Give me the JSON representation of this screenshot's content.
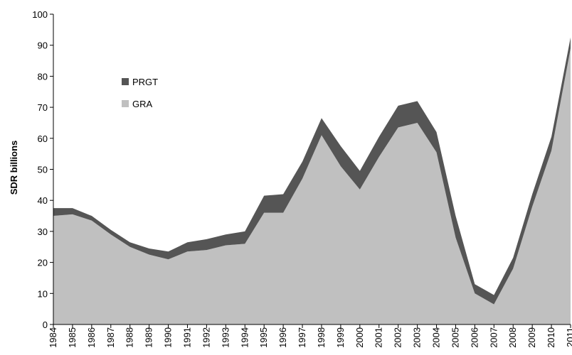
{
  "chart_data": {
    "type": "area",
    "stacked": true,
    "title": "",
    "xlabel": "",
    "ylabel": "SDR billions",
    "ylim": [
      0,
      100
    ],
    "yticks": [
      0,
      10,
      20,
      30,
      40,
      50,
      60,
      70,
      80,
      90,
      100
    ],
    "grid": false,
    "legend_position": "top-left",
    "x": [
      "1984",
      "1985",
      "1986",
      "1987",
      "1988",
      "1989",
      "1990",
      "1991",
      "1992",
      "1993",
      "1994",
      "1995",
      "1996",
      "1997",
      "1998",
      "1999",
      "2000",
      "2001",
      "2002",
      "2003",
      "2004",
      "2005",
      "2006",
      "2007",
      "2008",
      "2009",
      "2010",
      "2011"
    ],
    "series": [
      {
        "name": "GRA",
        "color": "#c0c0c0",
        "values": [
          35,
          35.5,
          33.5,
          29,
          25,
          22.5,
          21,
          23.5,
          24,
          25.5,
          26,
          36,
          36,
          47,
          61,
          51,
          43.5,
          54,
          63.5,
          65,
          55.5,
          28,
          10,
          6.5,
          18,
          38,
          56,
          89
        ]
      },
      {
        "name": "PRGT",
        "color": "#555555",
        "values": [
          2.5,
          2,
          1.5,
          1.5,
          1.5,
          2,
          2.5,
          3,
          3.5,
          3.5,
          4,
          5.5,
          6,
          5.5,
          5.5,
          6.5,
          6,
          6.5,
          7,
          7,
          6.5,
          7,
          3,
          3,
          3.5,
          4,
          4.5,
          3.5
        ]
      }
    ]
  }
}
